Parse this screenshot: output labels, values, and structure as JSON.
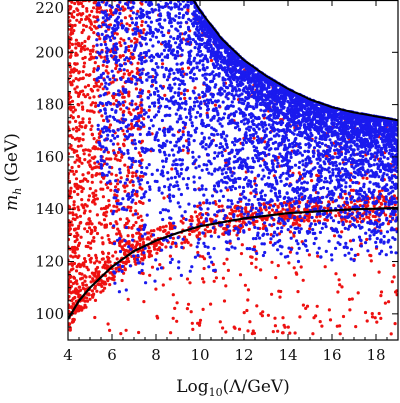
{
  "chart_data": {
    "type": "scatter",
    "title": "",
    "xlabel": "Log₁₀(Λ/GeV)",
    "ylabel": "m_h (GeV)",
    "ylabel_main": "m",
    "ylabel_sub": "h",
    "ylabel_rest": " (GeV)",
    "xlabel_main": "Log",
    "xlabel_sub": "10",
    "xlabel_rest": "(Λ/GeV)",
    "xlim": [
      4,
      19
    ],
    "ylim": [
      90,
      220
    ],
    "xticks": [
      4,
      6,
      8,
      10,
      12,
      14,
      16,
      18
    ],
    "yticks": [
      100,
      120,
      140,
      160,
      180,
      200,
      220
    ],
    "grid": false,
    "colors": {
      "red": "#ee1111",
      "blue": "#1a1aee",
      "curve": "#000000"
    },
    "series": [
      {
        "color": "red",
        "description_points": "dense scatter, concentrated at low Log10(Λ) and along the lower curve",
        "x": [
          4.2,
          4.3,
          4.5,
          4.6,
          4.8,
          4.9,
          5.1,
          5.3,
          5.5,
          5.7,
          6.0,
          6.3,
          6.8,
          7.2,
          8.0,
          9.0,
          10.5,
          12.0,
          14.0,
          16.0,
          18.0
        ],
        "y": [
          100,
          110,
          125,
          140,
          160,
          180,
          200,
          215,
          190,
          170,
          150,
          130,
          125,
          145,
          160,
          125,
          132,
          128,
          136,
          134,
          137
        ]
      },
      {
        "color": "blue",
        "description_points": "dense scatter between the lower curve and the upper boundary, thinning toward the bottom",
        "x": [
          6.0,
          6.5,
          7.0,
          8.0,
          9.0,
          10.0,
          11.0,
          12.0,
          13.0,
          14.0,
          15.0,
          16.0,
          17.0,
          18.0
        ],
        "y": [
          215,
          205,
          195,
          185,
          170,
          160,
          150,
          155,
          145,
          150,
          160,
          165,
          170,
          172
        ]
      }
    ],
    "curves": [
      {
        "name": "lower bound",
        "x": [
          4,
          4.5,
          5,
          5.5,
          6,
          6.5,
          7,
          8,
          9,
          10,
          11,
          12,
          13,
          14,
          15,
          16,
          17,
          18,
          19
        ],
        "y": [
          98,
          105,
          110,
          114,
          118,
          121,
          124,
          128,
          131,
          133.5,
          135,
          136.5,
          137.5,
          138.5,
          139,
          139.5,
          140,
          140.2,
          140.5
        ]
      },
      {
        "name": "upper boundary",
        "x": [
          9.7,
          10,
          11,
          12,
          13,
          14,
          15,
          16,
          17,
          18,
          19
        ],
        "y": [
          220,
          216,
          205,
          197,
          191,
          186,
          182,
          179,
          177,
          175.5,
          174
        ]
      }
    ]
  }
}
